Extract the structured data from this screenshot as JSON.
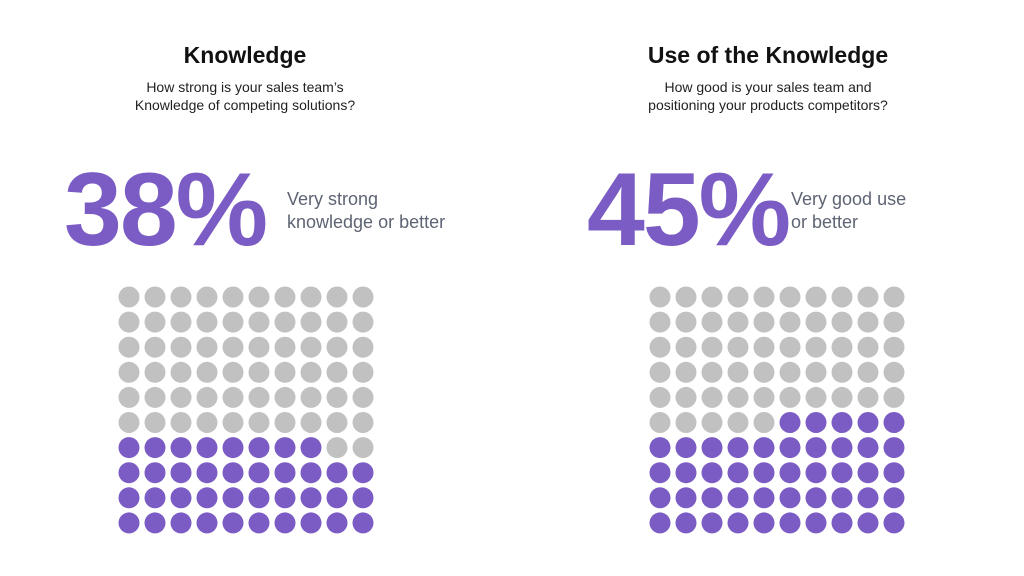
{
  "chart_data": [
    {
      "type": "waffle",
      "title": "Knowledge",
      "subtitle": [
        "How strong is your sales team’s",
        "Knowledge of competing solutions?"
      ],
      "value": 38,
      "value_label": "38%",
      "caption": [
        "Very strong",
        "knowledge or better"
      ],
      "color": "#7b5cc4",
      "empty_color": "#c1c1c1"
    },
    {
      "type": "waffle",
      "title": "Use of the Knowledge",
      "subtitle": [
        "How good is your sales team and",
        "positioning your products competitors?"
      ],
      "value": 45,
      "value_label": "45%",
      "caption": [
        "Very good use",
        "or better"
      ],
      "color": "#7b5cc4",
      "empty_color": "#c1c1c1"
    }
  ]
}
